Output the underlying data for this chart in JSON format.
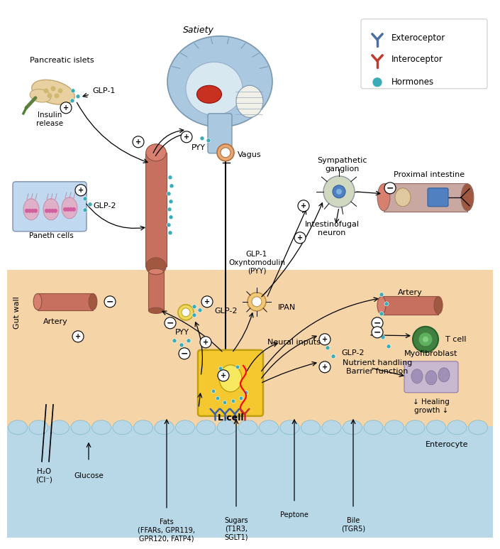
{
  "background_color": "#ffffff",
  "gut_wall_color": "#f5d5a8",
  "gut_lumen_color": "#b8d8e8",
  "artery_color": "#c87060",
  "hormone_color": "#3aacb8",
  "l_cell_color": "#f5c830",
  "brain_color": "#aec8e0",
  "legend": {
    "exteroceptor_color": "#4a6fa5",
    "interoceptor_color": "#c0392b",
    "hormone_color": "#3aacb8",
    "items": [
      "Exteroceptor",
      "Interoceptor",
      "Hormones"
    ]
  },
  "labels": {
    "pancreatic_islets": "Pancreatic islets",
    "insulin_release": "Insulin\nrelease",
    "glp1_top": "GLP-1",
    "glp2_paneth": "GLP-2",
    "paneth_cells": "Paneth cells",
    "satiety": "Satiety",
    "pyy_top": "PYY",
    "vagus": "Vagus",
    "glp1_oxynto": "GLP-1\nOxyntomodulin\n(PYY)",
    "ipan": "IPAN",
    "neural_inputs": "Neural inputs",
    "sympathetic": "Sympathetic\nganglion",
    "intestinofugal": "Intestinofugal\nneuron",
    "proximal_intestine": "Proximal intestine",
    "gut_wall": "Gut wall",
    "artery_left": "Artery",
    "artery_right": "Artery",
    "glp2_mid": "GLP-2",
    "pyy_mid": "PYY",
    "glp2_right": "GLP-2",
    "t_cell": "T cell",
    "myofibroblast": "Myofibroblast",
    "nutrient": "Nutrient handling\nBarrier function",
    "healing": "↓ Healing\ngrowth ↓",
    "l_cell": "L cell",
    "enterocyte": "Enterocyte",
    "h2o": "H₂O\n(Cl⁻)",
    "glucose": "Glucose",
    "fats": "Fats\n(FFARs, GPR119,\nGPR120, FATP4)",
    "sugars": "Sugars\n(T1R3,\nSGLT1)",
    "peptone": "Peptone",
    "bile": "Bile\n(TGR5)"
  }
}
